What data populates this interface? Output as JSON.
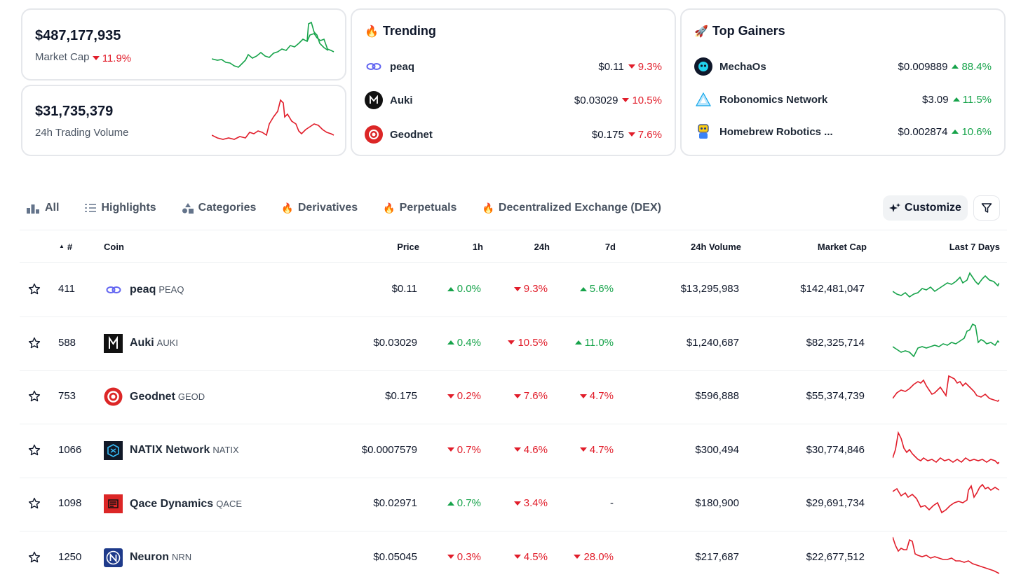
{
  "stats": {
    "market_cap": {
      "value": "$487,177,935",
      "label": "Market Cap",
      "change": "11.9%",
      "direction": "down"
    },
    "volume": {
      "value": "$31,735,379",
      "label": "24h Trading Volume"
    }
  },
  "trending": {
    "title": "Trending",
    "items": [
      {
        "name": "peaq",
        "price": "$0.11",
        "change": "9.3%",
        "direction": "down"
      },
      {
        "name": "Auki",
        "price": "$0.03029",
        "change": "10.5%",
        "direction": "down"
      },
      {
        "name": "Geodnet",
        "price": "$0.175",
        "change": "7.6%",
        "direction": "down"
      }
    ]
  },
  "gainers": {
    "title": "Top Gainers",
    "items": [
      {
        "name": "MechaOs",
        "price": "$0.009889",
        "change": "88.4%",
        "direction": "up"
      },
      {
        "name": "Robonomics Network",
        "price": "$3.09",
        "change": "11.5%",
        "direction": "up"
      },
      {
        "name": "Homebrew Robotics ...",
        "price": "$0.002874",
        "change": "10.6%",
        "direction": "up"
      }
    ]
  },
  "tabs": [
    "All",
    "Highlights",
    "Categories",
    "Derivatives",
    "Perpetuals",
    "Decentralized Exchange (DEX)"
  ],
  "toolbar": {
    "customize_label": "Customize"
  },
  "table": {
    "headers": {
      "rank": "#",
      "coin": "Coin",
      "price": "Price",
      "h1": "1h",
      "h24": "24h",
      "d7": "7d",
      "volume": "24h Volume",
      "mcap": "Market Cap",
      "last7": "Last 7 Days"
    },
    "rows": [
      {
        "rank": "411",
        "name": "peaq",
        "symbol": "PEAQ",
        "price": "$0.11",
        "h1": "0.0%",
        "h1_dir": "up",
        "h24": "9.3%",
        "h24_dir": "down",
        "d7": "5.6%",
        "d7_dir": "up",
        "volume": "$13,295,983",
        "mcap": "$142,481,047",
        "trend": "up"
      },
      {
        "rank": "588",
        "name": "Auki",
        "symbol": "AUKI",
        "price": "$0.03029",
        "h1": "0.4%",
        "h1_dir": "up",
        "h24": "10.5%",
        "h24_dir": "down",
        "d7": "11.0%",
        "d7_dir": "up",
        "volume": "$1,240,687",
        "mcap": "$82,325,714",
        "trend": "up"
      },
      {
        "rank": "753",
        "name": "Geodnet",
        "symbol": "GEOD",
        "price": "$0.175",
        "h1": "0.2%",
        "h1_dir": "down",
        "h24": "7.6%",
        "h24_dir": "down",
        "d7": "4.7%",
        "d7_dir": "down",
        "volume": "$596,888",
        "mcap": "$55,374,739",
        "trend": "down"
      },
      {
        "rank": "1066",
        "name": "NATIX Network",
        "symbol": "NATIX",
        "price": "$0.0007579",
        "h1": "0.7%",
        "h1_dir": "down",
        "h24": "4.6%",
        "h24_dir": "down",
        "d7": "4.7%",
        "d7_dir": "down",
        "volume": "$300,494",
        "mcap": "$30,774,846",
        "trend": "down"
      },
      {
        "rank": "1098",
        "name": "Qace Dynamics",
        "symbol": "QACE",
        "price": "$0.02971",
        "h1": "0.7%",
        "h1_dir": "up",
        "h24": "3.4%",
        "h24_dir": "down",
        "d7": "-",
        "d7_dir": "none",
        "volume": "$180,900",
        "mcap": "$29,691,734",
        "trend": "down"
      },
      {
        "rank": "1250",
        "name": "Neuron",
        "symbol": "NRN",
        "price": "$0.05045",
        "h1": "0.3%",
        "h1_dir": "down",
        "h24": "4.5%",
        "h24_dir": "down",
        "d7": "28.0%",
        "d7_dir": "down",
        "volume": "$217,687",
        "mcap": "$22,677,512",
        "trend": "down"
      }
    ]
  },
  "colors": {
    "up": "#16a34a",
    "down": "#e11d2a",
    "border": "#e5e7eb"
  }
}
